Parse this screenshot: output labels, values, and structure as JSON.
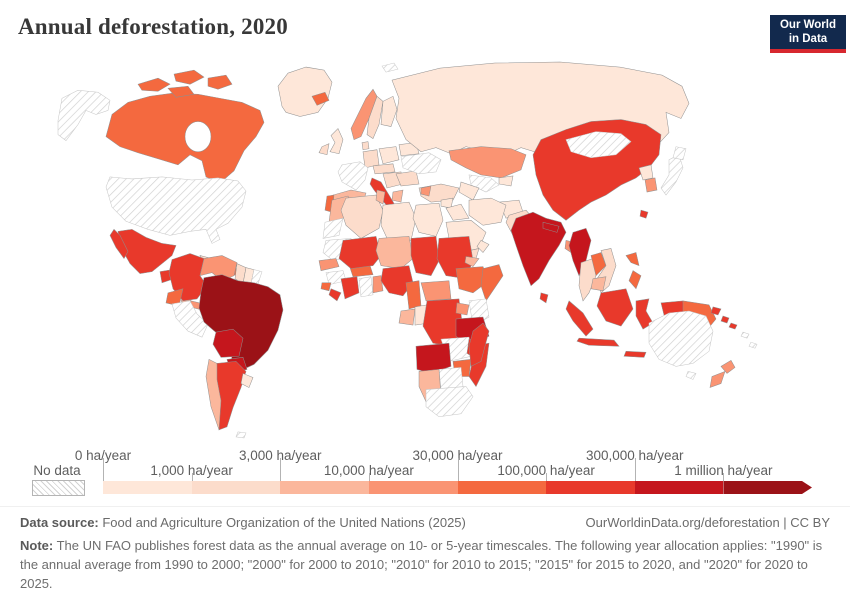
{
  "logo": {
    "line1": "Our World",
    "line2": "in Data",
    "bg": "#12294d",
    "accent": "#d7282f"
  },
  "chart_data": {
    "type": "choropleth",
    "title": "Annual deforestation, 2020",
    "unit": "ha/year",
    "bin_labels": [
      "0 ha/year",
      "1,000 ha/year",
      "3,000 ha/year",
      "10,000 ha/year",
      "30,000 ha/year",
      "100,000 ha/year",
      "300,000 ha/year",
      "1 million ha/year"
    ],
    "no_data_label": "No data",
    "palette": [
      "#fee7d9",
      "#fcdccb",
      "#fbb79c",
      "#fa9473",
      "#f4693f",
      "#e8392b",
      "#c5161d",
      "#9b1217"
    ],
    "legend_position": "bottom",
    "regions": {
      "alaska": "no_data",
      "canada": 5,
      "greenland": 1,
      "usa": "no_data",
      "mexico": 6,
      "guatemala": 6,
      "honduras": 4,
      "nicaragua": 6,
      "costa-rica": 3,
      "panama": 4,
      "cuba": 2,
      "hispaniola": 5,
      "colombia": 6,
      "venezuela": 4,
      "guyana": 2,
      "suriname": 1,
      "french-guiana": "no_data",
      "ecuador": 5,
      "peru": "no_data",
      "brazil": 8,
      "bolivia": 7,
      "paraguay": 7,
      "chile": 3,
      "argentina": 6,
      "uruguay": 1,
      "falkland-islands": "no_data",
      "iceland": 5,
      "united-kingdom": 1,
      "ireland": 2,
      "norway": 4,
      "sweden": 2,
      "finland": 1,
      "denmark": 2,
      "germany": 2,
      "france": "no_data",
      "spain": 3,
      "portugal": 5,
      "italy": 6,
      "sicily": 6,
      "poland": 1,
      "czech-austria": 2,
      "balkans": 2,
      "greece": 3,
      "romania-bulgaria": 2,
      "ukraine": "no_data",
      "belarus": 1,
      "turkey": 2,
      "turkey-nw": 4,
      "svalbard": "no_data",
      "russia": 1,
      "kazakhstan": 4,
      "uzbekistan": "no_data",
      "turkmenistan": 1,
      "kyrgyz-tajik": 1,
      "afghanistan": 1,
      "pakistan": 2,
      "syria": 1,
      "iraq": 1,
      "iran": 1,
      "saudi-arabia": 1,
      "yemen": 2,
      "oman": 1,
      "morocco": 3,
      "western-sahara": "no_data",
      "algeria": 2,
      "tunisia": 3,
      "libya": 1,
      "egypt": 1,
      "mauritania": "no_data",
      "senegal": 4,
      "guinea": "no_data",
      "sierra-leone": 5,
      "liberia": 6,
      "cote-divoire": 6,
      "ghana": "no_data",
      "togo-benin": 4,
      "burkina-faso": 5,
      "mali": 6,
      "niger": 3,
      "nigeria": 6,
      "chad": 6,
      "sudan": 6,
      "eritrea": 3,
      "ethiopia": 5,
      "somalia": 5,
      "cameroon": 5,
      "central-african-republic": 4,
      "gabon": 3,
      "congo": 1,
      "drc": 6,
      "uganda": 4,
      "kenya": "no_data",
      "tanzania": 7,
      "zambia": "no_data",
      "angola": 7,
      "malawi": 6,
      "mozambique": 6,
      "zimbabwe": 5,
      "botswana": "no_data",
      "namibia": 3,
      "south-africa": "no_data",
      "madagascar": 6,
      "india": 7,
      "sri-lanka": 6,
      "nepal": 7,
      "bangladesh": 4,
      "myanmar": 7,
      "thailand": 2,
      "laos": 5,
      "vietnam": 2,
      "cambodia": 3,
      "china": 6,
      "mongolia": "no_data",
      "north-korea": 1,
      "south-korea": 4,
      "japan": "no_data",
      "taiwan": 6,
      "philippines": 5,
      "indonesia": 6,
      "papua-new-guinea": 5,
      "new-britain": 6,
      "solomon-islands": 6,
      "pacific-islands": "no_data",
      "australia": "no_data",
      "tasmania": "no_data",
      "new-zealand": 4
    }
  },
  "footer": {
    "source_label": "Data source:",
    "source_text": " Food and Agriculture Organization of the United Nations (2025)",
    "rights": "OurWorldinData.org/deforestation | CC BY",
    "note_label": "Note:",
    "note_text": " The UN FAO publishes forest data as the annual average on 10- or 5-year timescales. The following year allocation applies: \"1990\" is the annual average from 1990 to 2000; \"2000\" for 2000 to 2010; \"2010\" for 2010 to 2015; \"2015\" for 2015 to 2020, and \"2020\" for 2020 to 2025."
  }
}
